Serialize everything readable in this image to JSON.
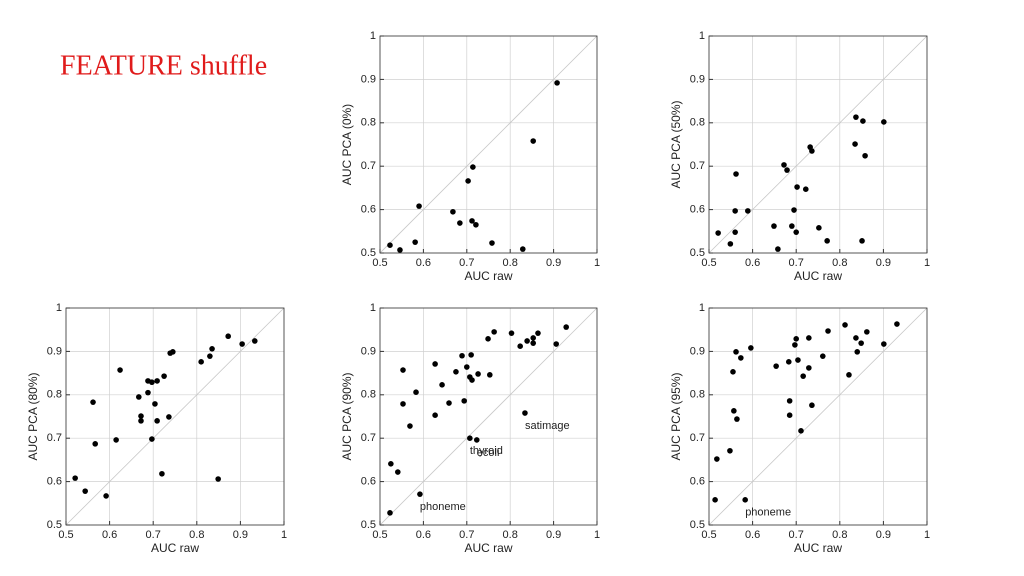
{
  "title": "FEATURE shuffle",
  "chart_data": [
    {
      "type": "scatter",
      "xlabel": "AUC raw",
      "ylabel": "AUC PCA (0%)",
      "color": "#000000",
      "grid": true,
      "xlim": [
        0.5,
        1
      ],
      "ylim": [
        0.5,
        1
      ],
      "xticks": [
        0.5,
        0.6,
        0.7,
        0.8,
        0.9,
        1
      ],
      "yticks": [
        0.5,
        0.6,
        0.7,
        0.8,
        0.9,
        1
      ],
      "x": [
        0.908,
        0.853,
        0.714,
        0.703,
        0.59,
        0.668,
        0.684,
        0.712,
        0.721,
        0.581,
        0.523,
        0.546,
        0.758,
        0.829
      ],
      "values": [
        0.892,
        0.758,
        0.698,
        0.666,
        0.608,
        0.595,
        0.569,
        0.574,
        0.565,
        0.525,
        0.518,
        0.507,
        0.523,
        0.509
      ]
    },
    {
      "type": "scatter",
      "xlabel": "AUC raw",
      "ylabel": "AUC PCA (50%)",
      "color": "#000000",
      "grid": true,
      "xlim": [
        0.5,
        1
      ],
      "ylim": [
        0.5,
        1
      ],
      "xticks": [
        0.5,
        0.6,
        0.7,
        0.8,
        0.9,
        1
      ],
      "yticks": [
        0.5,
        0.6,
        0.7,
        0.8,
        0.9,
        1
      ],
      "x": [
        0.837,
        0.853,
        0.901,
        0.835,
        0.858,
        0.732,
        0.736,
        0.672,
        0.679,
        0.562,
        0.702,
        0.722,
        0.695,
        0.589,
        0.56,
        0.649,
        0.69,
        0.7,
        0.752,
        0.771,
        0.521,
        0.549,
        0.56,
        0.658,
        0.851
      ],
      "values": [
        0.813,
        0.804,
        0.802,
        0.751,
        0.724,
        0.744,
        0.735,
        0.703,
        0.691,
        0.682,
        0.652,
        0.647,
        0.599,
        0.597,
        0.597,
        0.562,
        0.562,
        0.548,
        0.558,
        0.528,
        0.546,
        0.521,
        0.548,
        0.509,
        0.528
      ]
    },
    {
      "type": "scatter",
      "xlabel": "AUC raw",
      "ylabel": "AUC PCA (80%)",
      "color": "#000000",
      "grid": true,
      "xlim": [
        0.5,
        1
      ],
      "ylim": [
        0.5,
        1
      ],
      "xticks": [
        0.5,
        0.6,
        0.7,
        0.8,
        0.9,
        1
      ],
      "yticks": [
        0.5,
        0.6,
        0.7,
        0.8,
        0.9,
        1
      ],
      "x": [
        0.933,
        0.904,
        0.872,
        0.835,
        0.83,
        0.81,
        0.745,
        0.739,
        0.624,
        0.725,
        0.709,
        0.697,
        0.688,
        0.667,
        0.688,
        0.562,
        0.672,
        0.672,
        0.704,
        0.736,
        0.709,
        0.615,
        0.697,
        0.567,
        0.72,
        0.849,
        0.521,
        0.544,
        0.592
      ],
      "values": [
        0.924,
        0.917,
        0.935,
        0.906,
        0.889,
        0.876,
        0.899,
        0.896,
        0.857,
        0.843,
        0.832,
        0.829,
        0.832,
        0.795,
        0.805,
        0.783,
        0.751,
        0.74,
        0.779,
        0.749,
        0.74,
        0.696,
        0.698,
        0.687,
        0.618,
        0.606,
        0.608,
        0.578,
        0.567
      ]
    },
    {
      "type": "scatter",
      "xlabel": "AUC raw",
      "ylabel": "AUC PCA (90%)",
      "color": "#000000",
      "grid": true,
      "xlim": [
        0.5,
        1
      ],
      "ylim": [
        0.5,
        1
      ],
      "xticks": [
        0.5,
        0.6,
        0.7,
        0.8,
        0.9,
        1
      ],
      "yticks": [
        0.5,
        0.6,
        0.7,
        0.8,
        0.9,
        1
      ],
      "x": [
        0.929,
        0.864,
        0.803,
        0.763,
        0.749,
        0.853,
        0.853,
        0.839,
        0.823,
        0.906,
        0.71,
        0.689,
        0.627,
        0.675,
        0.553,
        0.643,
        0.7,
        0.707,
        0.712,
        0.726,
        0.753,
        0.583,
        0.553,
        0.659,
        0.694,
        0.627,
        0.569,
        0.834,
        0.707,
        0.723,
        0.525,
        0.541,
        0.592,
        0.523
      ],
      "values": [
        0.956,
        0.942,
        0.942,
        0.945,
        0.929,
        0.931,
        0.919,
        0.924,
        0.912,
        0.917,
        0.892,
        0.89,
        0.871,
        0.853,
        0.857,
        0.823,
        0.864,
        0.841,
        0.834,
        0.848,
        0.846,
        0.806,
        0.779,
        0.781,
        0.786,
        0.753,
        0.728,
        0.758,
        0.7,
        0.696,
        0.641,
        0.622,
        0.571,
        0.528
      ],
      "point_labels": [
        null,
        null,
        null,
        null,
        null,
        null,
        null,
        null,
        null,
        null,
        null,
        null,
        null,
        null,
        null,
        null,
        null,
        null,
        null,
        null,
        null,
        null,
        null,
        null,
        null,
        null,
        null,
        "satimage",
        "thyroid",
        "ecoli",
        null,
        null,
        "phoneme",
        null
      ]
    },
    {
      "type": "scatter",
      "xlabel": "AUC raw",
      "ylabel": "AUC PCA (95%)",
      "color": "#000000",
      "grid": true,
      "xlim": [
        0.5,
        1
      ],
      "ylim": [
        0.5,
        1
      ],
      "xticks": [
        0.5,
        0.6,
        0.7,
        0.8,
        0.9,
        1
      ],
      "yticks": [
        0.5,
        0.6,
        0.7,
        0.8,
        0.9,
        1
      ],
      "x": [
        0.931,
        0.812,
        0.773,
        0.862,
        0.837,
        0.849,
        0.901,
        0.84,
        0.7,
        0.697,
        0.729,
        0.562,
        0.596,
        0.573,
        0.761,
        0.683,
        0.704,
        0.654,
        0.729,
        0.716,
        0.555,
        0.821,
        0.685,
        0.736,
        0.685,
        0.557,
        0.564,
        0.711,
        0.548,
        0.518,
        0.583,
        0.514
      ],
      "values": [
        0.963,
        0.961,
        0.947,
        0.945,
        0.931,
        0.919,
        0.917,
        0.899,
        0.929,
        0.915,
        0.931,
        0.899,
        0.908,
        0.885,
        0.889,
        0.876,
        0.88,
        0.866,
        0.862,
        0.843,
        0.853,
        0.846,
        0.786,
        0.776,
        0.753,
        0.763,
        0.744,
        0.717,
        0.671,
        0.652,
        0.558,
        0.558
      ],
      "point_labels": [
        null,
        null,
        null,
        null,
        null,
        null,
        null,
        null,
        null,
        null,
        null,
        null,
        null,
        null,
        null,
        null,
        null,
        null,
        null,
        null,
        null,
        null,
        null,
        null,
        null,
        null,
        null,
        null,
        null,
        null,
        "phoneme",
        null
      ]
    }
  ]
}
